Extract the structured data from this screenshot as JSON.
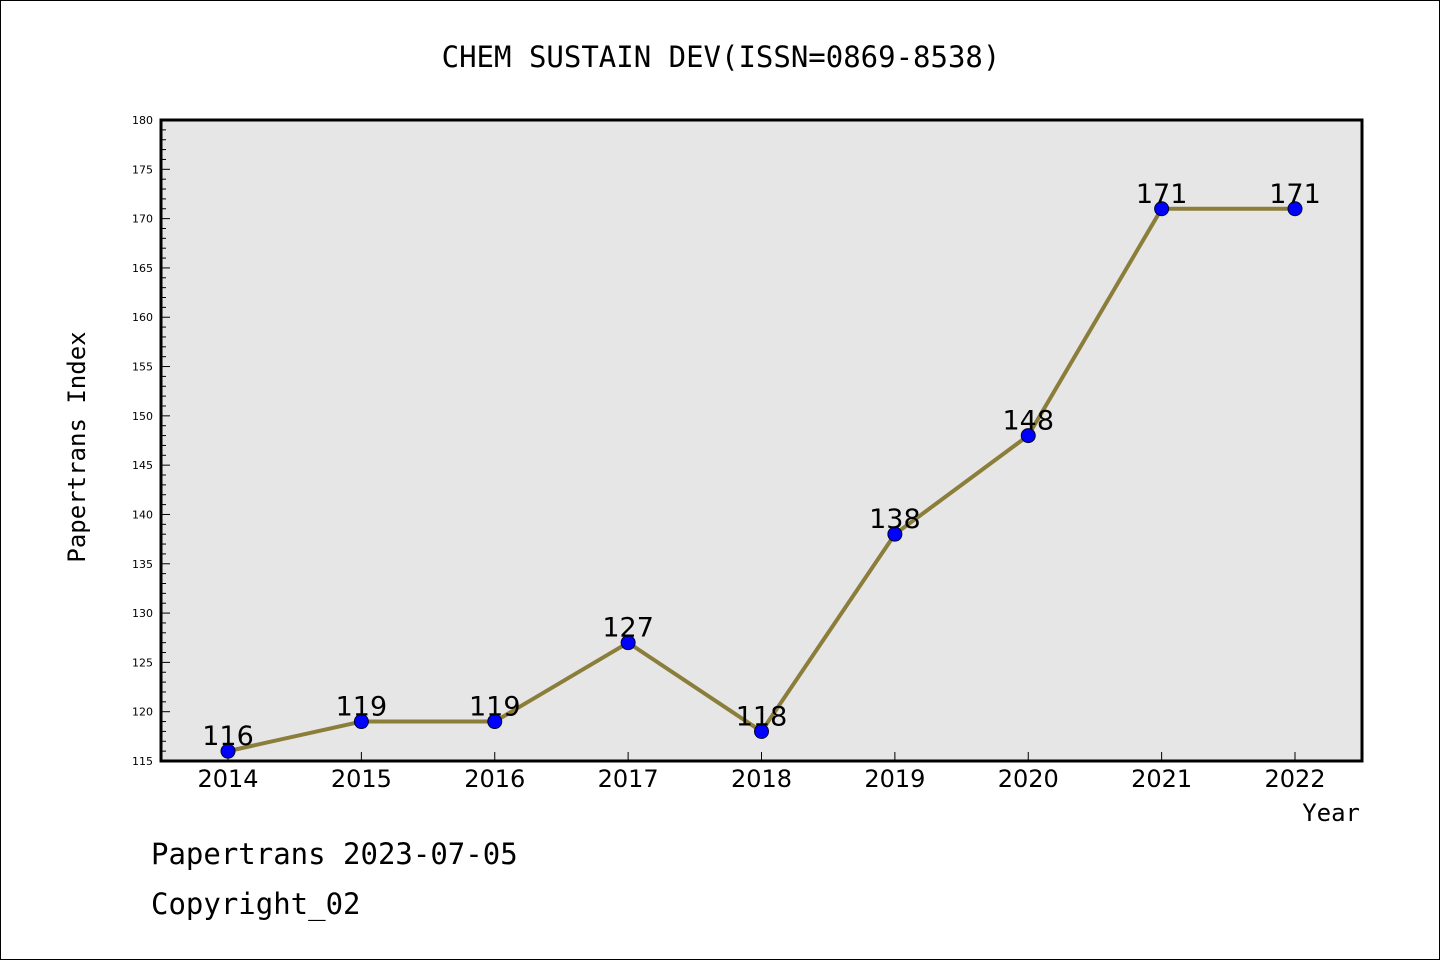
{
  "chart_data": {
    "type": "line",
    "title": "CHEM SUSTAIN DEV(ISSN=0869-8538)",
    "xlabel": "Year",
    "ylabel": "Papertrans Index",
    "categories": [
      "2014",
      "2015",
      "2016",
      "2017",
      "2018",
      "2019",
      "2020",
      "2021",
      "2022"
    ],
    "values": [
      116,
      119,
      119,
      127,
      118,
      138,
      148,
      171,
      171
    ],
    "data_labels": [
      "116",
      "119",
      "119",
      "127",
      "118",
      "138",
      "148",
      "171",
      "171"
    ],
    "ylim": [
      115,
      180
    ],
    "yticks": [
      "115",
      "120",
      "125",
      "130",
      "135",
      "140",
      "145",
      "150",
      "155",
      "160",
      "165",
      "170",
      "175",
      "180"
    ],
    "grid": false,
    "line_color": "#8B7D3A",
    "marker_color": "#0000FF",
    "plot_background": "#E6E6E6"
  },
  "footer": {
    "line1": "Papertrans 2023-07-05",
    "line2": "Copyright_02"
  }
}
